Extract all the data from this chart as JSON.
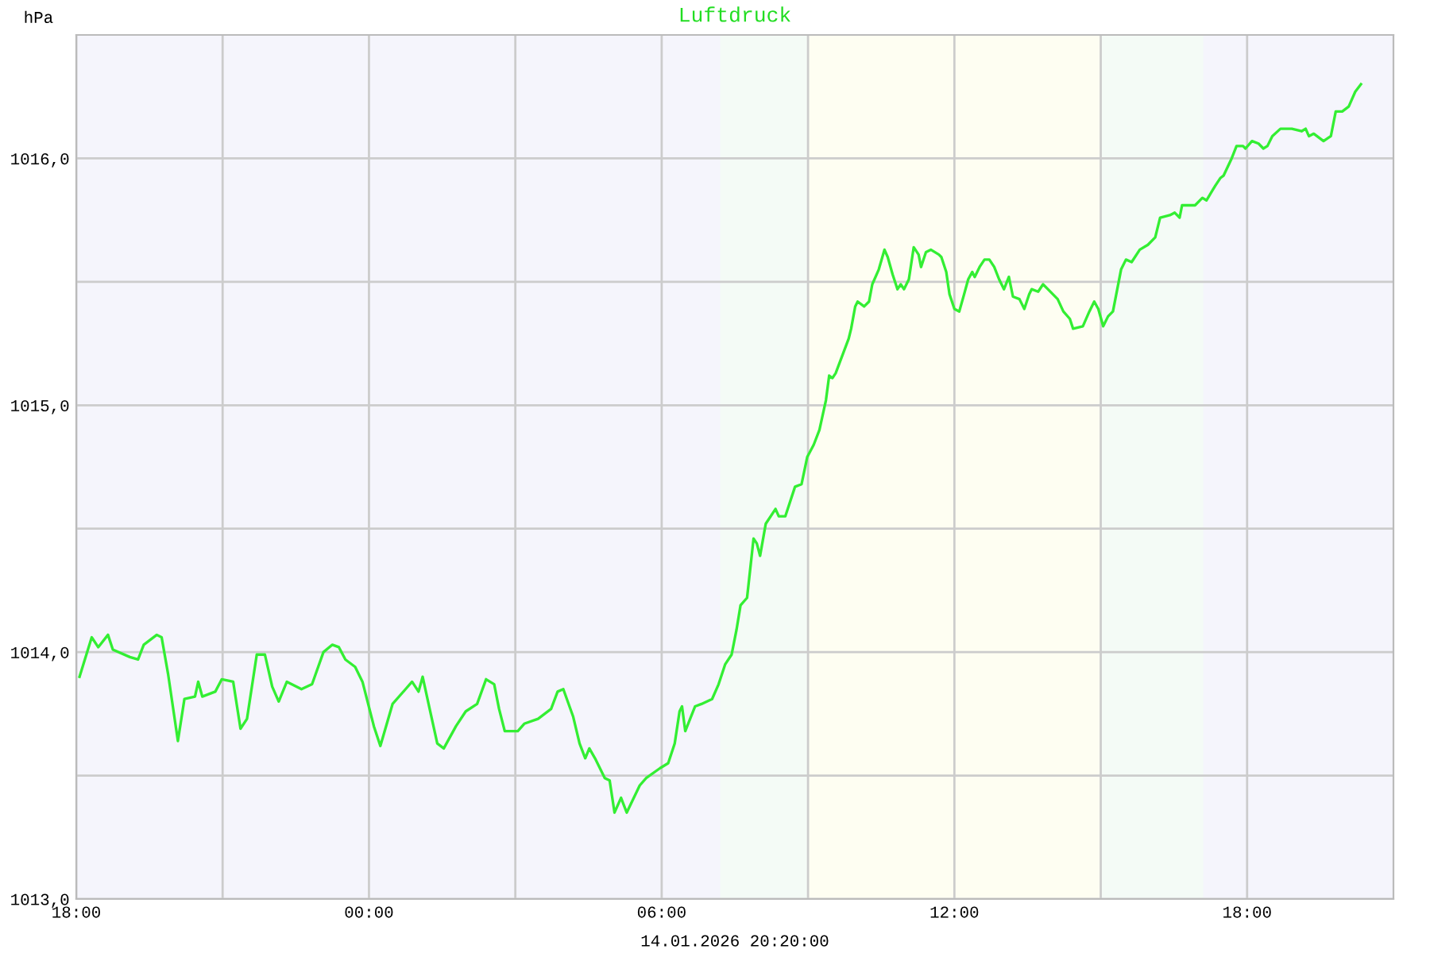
{
  "chart_data": {
    "type": "line",
    "title": "Luftdruck",
    "ylabel": "hPa",
    "xlabel": "14.01.2026 20:20:00",
    "x": [
      "2026-01-13T18:04",
      "2026-01-13T18:19",
      "2026-01-13T18:27",
      "2026-01-13T18:39",
      "2026-01-13T18:45",
      "2026-01-13T19:06",
      "2026-01-13T19:16",
      "2026-01-13T19:23",
      "2026-01-13T19:39",
      "2026-01-13T19:45",
      "2026-01-13T19:53",
      "2026-01-13T20:05",
      "2026-01-13T20:13",
      "2026-01-13T20:26",
      "2026-01-13T20:30",
      "2026-01-13T20:35",
      "2026-01-13T20:51",
      "2026-01-13T20:59",
      "2026-01-13T21:13",
      "2026-01-13T21:22",
      "2026-01-13T21:30",
      "2026-01-13T21:42",
      "2026-01-13T21:52",
      "2026-01-13T22:01",
      "2026-01-13T22:09",
      "2026-01-13T22:19",
      "2026-01-13T22:37",
      "2026-01-13T22:50",
      "2026-01-13T23:04",
      "2026-01-13T23:15",
      "2026-01-13T23:23",
      "2026-01-13T23:31",
      "2026-01-13T23:43",
      "2026-01-13T23:52",
      "2026-01-14T00:06",
      "2026-01-14T00:14",
      "2026-01-14T00:29",
      "2026-01-14T00:45",
      "2026-01-14T00:53",
      "2026-01-14T01:01",
      "2026-01-14T01:06",
      "2026-01-14T01:14",
      "2026-01-14T01:24",
      "2026-01-14T01:32",
      "2026-01-14T01:47",
      "2026-01-14T01:59",
      "2026-01-14T02:13",
      "2026-01-14T02:24",
      "2026-01-14T02:34",
      "2026-01-14T02:40",
      "2026-01-14T02:47",
      "2026-01-14T03:03",
      "2026-01-14T03:11",
      "2026-01-14T03:28",
      "2026-01-14T03:44",
      "2026-01-14T03:52",
      "2026-01-14T03:59",
      "2026-01-14T04:11",
      "2026-01-14T04:19",
      "2026-01-14T04:26",
      "2026-01-14T04:31",
      "2026-01-14T04:38",
      "2026-01-14T04:50",
      "2026-01-14T04:56",
      "2026-01-14T05:02",
      "2026-01-14T05:10",
      "2026-01-14T05:17",
      "2026-01-14T05:33",
      "2026-01-14T05:41",
      "2026-01-14T05:58",
      "2026-01-14T06:08",
      "2026-01-14T06:16",
      "2026-01-14T06:22",
      "2026-01-14T06:25",
      "2026-01-14T06:29",
      "2026-01-14T06:41",
      "2026-01-14T06:49",
      "2026-01-14T07:02",
      "2026-01-14T07:10",
      "2026-01-14T07:18",
      "2026-01-14T07:26",
      "2026-01-14T07:32",
      "2026-01-14T07:37",
      "2026-01-14T07:45",
      "2026-01-14T07:49",
      "2026-01-14T07:53",
      "2026-01-14T07:57",
      "2026-01-14T08:01",
      "2026-01-14T08:08",
      "2026-01-14T08:20",
      "2026-01-14T08:24",
      "2026-01-14T08:32",
      "2026-01-14T08:44",
      "2026-01-14T08:52",
      "2026-01-14T08:59",
      "2026-01-14T09:07",
      "2026-01-14T09:14",
      "2026-01-14T09:22",
      "2026-01-14T09:26",
      "2026-01-14T09:30",
      "2026-01-14T09:34",
      "2026-01-14T09:42",
      "2026-01-14T09:50",
      "2026-01-14T09:53",
      "2026-01-14T09:58",
      "2026-01-14T10:01",
      "2026-01-14T10:09",
      "2026-01-14T10:15",
      "2026-01-14T10:19",
      "2026-01-14T10:27",
      "2026-01-14T10:34",
      "2026-01-14T10:38",
      "2026-01-14T10:44",
      "2026-01-14T10:50",
      "2026-01-14T10:54",
      "2026-01-14T10:58",
      "2026-01-14T11:04",
      "2026-01-14T11:10",
      "2026-01-14T11:16",
      "2026-01-14T11:19",
      "2026-01-14T11:25",
      "2026-01-14T11:31",
      "2026-01-14T11:41",
      "2026-01-14T11:44",
      "2026-01-14T11:50",
      "2026-01-14T11:54",
      "2026-01-14T12:00",
      "2026-01-14T12:06",
      "2026-01-14T12:12",
      "2026-01-14T12:17",
      "2026-01-14T12:22",
      "2026-01-14T12:25",
      "2026-01-14T12:31",
      "2026-01-14T12:37",
      "2026-01-14T12:43",
      "2026-01-14T12:49",
      "2026-01-14T12:55",
      "2026-01-14T13:01",
      "2026-01-14T13:07",
      "2026-01-14T13:12",
      "2026-01-14T13:20",
      "2026-01-14T13:26",
      "2026-01-14T13:32",
      "2026-01-14T13:35",
      "2026-01-14T13:43",
      "2026-01-14T13:49",
      "2026-01-14T13:55",
      "2026-01-14T14:07",
      "2026-01-14T14:14",
      "2026-01-14T14:22",
      "2026-01-14T14:26",
      "2026-01-14T14:38",
      "2026-01-14T14:46",
      "2026-01-14T14:52",
      "2026-01-14T14:57",
      "2026-01-14T15:03",
      "2026-01-14T15:09",
      "2026-01-14T15:15",
      "2026-01-14T15:25",
      "2026-01-14T15:31",
      "2026-01-14T15:38",
      "2026-01-14T15:48",
      "2026-01-14T15:58",
      "2026-01-14T16:07",
      "2026-01-14T16:13",
      "2026-01-14T16:25",
      "2026-01-14T16:31",
      "2026-01-14T16:37",
      "2026-01-14T16:40",
      "2026-01-14T16:56",
      "2026-01-14T17:05",
      "2026-01-14T17:10",
      "2026-01-14T17:21",
      "2026-01-14T17:27",
      "2026-01-14T17:31",
      "2026-01-14T17:41",
      "2026-01-14T17:47",
      "2026-01-14T17:55",
      "2026-01-14T17:58",
      "2026-01-14T18:06",
      "2026-01-14T18:14",
      "2026-01-14T18:20",
      "2026-01-14T18:25",
      "2026-01-14T18:31",
      "2026-01-14T18:41",
      "2026-01-14T18:55",
      "2026-01-14T19:07",
      "2026-01-14T19:12",
      "2026-01-14T19:16",
      "2026-01-14T19:22",
      "2026-01-14T19:34",
      "2026-01-14T19:43",
      "2026-01-14T19:49",
      "2026-01-14T19:57",
      "2026-01-14T20:05",
      "2026-01-14T20:13",
      "2026-01-14T20:20"
    ],
    "series": [
      {
        "color": "#33ee33",
        "values": [
          1013.9,
          1014.06,
          1014.02,
          1014.07,
          1014.01,
          1013.98,
          1013.97,
          1014.03,
          1014.07,
          1014.06,
          1013.91,
          1013.64,
          1013.81,
          1013.82,
          1013.88,
          1013.82,
          1013.84,
          1013.89,
          1013.88,
          1013.69,
          1013.73,
          1013.99,
          1013.99,
          1013.86,
          1013.8,
          1013.88,
          1013.85,
          1013.87,
          1014.0,
          1014.03,
          1014.02,
          1013.97,
          1013.94,
          1013.88,
          1013.7,
          1013.62,
          1013.79,
          1013.85,
          1013.88,
          1013.84,
          1013.9,
          1013.78,
          1013.63,
          1013.61,
          1013.7,
          1013.76,
          1013.79,
          1013.89,
          1013.87,
          1013.77,
          1013.68,
          1013.68,
          1013.71,
          1013.73,
          1013.77,
          1013.84,
          1013.85,
          1013.74,
          1013.63,
          1013.57,
          1013.61,
          1013.57,
          1013.49,
          1013.48,
          1013.35,
          1013.41,
          1013.35,
          1013.46,
          1013.49,
          1013.53,
          1013.55,
          1013.63,
          1013.76,
          1013.78,
          1013.68,
          1013.78,
          1013.79,
          1013.81,
          1013.87,
          1013.95,
          1013.99,
          1014.09,
          1014.19,
          1014.22,
          1014.34,
          1014.46,
          1014.44,
          1014.39,
          1014.52,
          1014.58,
          1014.55,
          1014.55,
          1014.67,
          1014.68,
          1014.79,
          1014.84,
          1014.9,
          1015.02,
          1015.12,
          1015.11,
          1015.13,
          1015.2,
          1015.27,
          1015.31,
          1015.4,
          1015.42,
          1015.4,
          1015.42,
          1015.49,
          1015.55,
          1015.63,
          1015.6,
          1015.53,
          1015.47,
          1015.49,
          1015.47,
          1015.51,
          1015.64,
          1015.61,
          1015.56,
          1015.62,
          1015.63,
          1015.61,
          1015.6,
          1015.54,
          1015.45,
          1015.39,
          1015.38,
          1015.45,
          1015.51,
          1015.54,
          1015.52,
          1015.56,
          1015.59,
          1015.59,
          1015.56,
          1015.51,
          1015.47,
          1015.52,
          1015.44,
          1015.43,
          1015.39,
          1015.45,
          1015.47,
          1015.46,
          1015.49,
          1015.47,
          1015.43,
          1015.38,
          1015.35,
          1015.31,
          1015.32,
          1015.38,
          1015.42,
          1015.39,
          1015.32,
          1015.36,
          1015.38,
          1015.55,
          1015.59,
          1015.58,
          1015.63,
          1015.65,
          1015.68,
          1015.76,
          1015.77,
          1015.78,
          1015.76,
          1015.81,
          1015.81,
          1015.84,
          1015.83,
          1015.89,
          1015.92,
          1015.93,
          1016.0,
          1016.05,
          1016.05,
          1016.04,
          1016.07,
          1016.06,
          1016.04,
          1016.05,
          1016.09,
          1016.12,
          1016.12,
          1016.11,
          1016.12,
          1016.09,
          1016.1,
          1016.07,
          1016.09,
          1016.19,
          1016.19,
          1016.21,
          1016.27,
          1016.3
        ]
      }
    ],
    "xlim": [
      "2026-01-13T18:00",
      "2026-01-14T21:00"
    ],
    "xticks": [
      {
        "value": "2026-01-13T18:00",
        "label": "18:00"
      },
      {
        "value": "2026-01-13T21:00",
        "label": null
      },
      {
        "value": "2026-01-14T00:00",
        "label": "00:00"
      },
      {
        "value": "2026-01-14T03:00",
        "label": null
      },
      {
        "value": "2026-01-14T06:00",
        "label": "06:00"
      },
      {
        "value": "2026-01-14T09:00",
        "label": null
      },
      {
        "value": "2026-01-14T12:00",
        "label": "12:00"
      },
      {
        "value": "2026-01-14T15:00",
        "label": null
      },
      {
        "value": "2026-01-14T18:00",
        "label": "18:00"
      }
    ],
    "ylim": [
      1013,
      1016.5
    ],
    "yticks": [
      {
        "value": 1013,
        "label": "1013,0"
      },
      {
        "value": 1013.5,
        "label": null
      },
      {
        "value": 1014,
        "label": "1014,0"
      },
      {
        "value": 1014.5,
        "label": null
      },
      {
        "value": 1015,
        "label": "1015,0"
      },
      {
        "value": 1015.5,
        "label": null
      },
      {
        "value": 1016,
        "label": "1016,0"
      }
    ],
    "bands": [
      {
        "axis": "x",
        "from": "2026-01-14T07:12",
        "to": "2026-01-14T09:00",
        "color": "#f4fbf6"
      },
      {
        "axis": "x",
        "from": "2026-01-14T09:00",
        "to": "2026-01-14T15:00",
        "color": "#fefef2"
      },
      {
        "axis": "x",
        "from": "2026-01-14T15:00",
        "to": "2026-01-14T17:06",
        "color": "#f4fbf6"
      }
    ],
    "grid": true,
    "marker": "none",
    "line_style": "solid"
  }
}
